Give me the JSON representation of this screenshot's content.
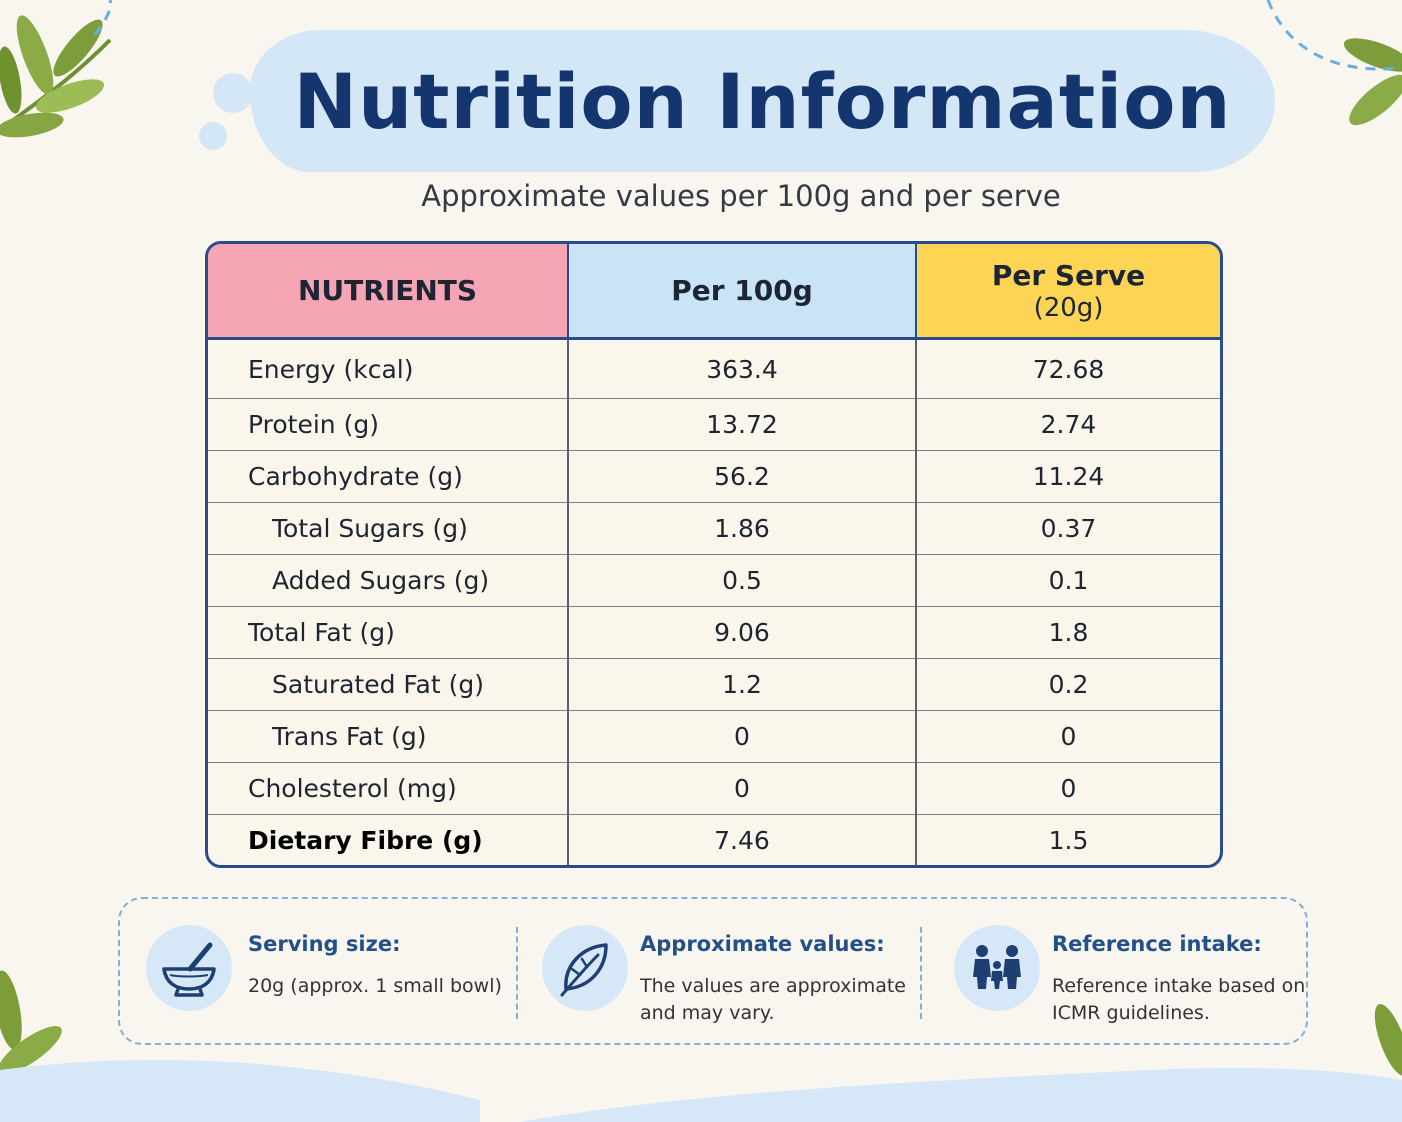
{
  "header": {
    "title": "Nutrition Information",
    "subtitle": "Approximate values per 100g and per serve"
  },
  "table": {
    "headers": {
      "nutrients": "NUTRIENTS",
      "per_100g": "Per 100g",
      "per_serve": "Per Serve",
      "per_serve_sub": "(20g)"
    },
    "header_colors": {
      "nutrients": "#f6a5b4",
      "per_100g": "#c9e3f7",
      "per_serve": "#fcd555"
    },
    "rows": [
      {
        "name": "Energy (kcal)",
        "per_100g": "363.4",
        "per_serve": "72.68"
      },
      {
        "name": "Protein (g)",
        "per_100g": "13.72",
        "per_serve": "2.74"
      },
      {
        "name": "Carbohydrate (g)",
        "per_100g": "56.2",
        "per_serve": "11.24"
      },
      {
        "name": "Total Sugars (g)",
        "per_100g": "1.86",
        "per_serve": "0.37"
      },
      {
        "name": "Added Sugars (g)",
        "per_100g": "0.5",
        "per_serve": "0.1"
      },
      {
        "name": "Total Fat (g)",
        "per_100g": "9.06",
        "per_serve": "1.8"
      },
      {
        "name": "Saturated Fat (g)",
        "per_100g": "1.2",
        "per_serve": "0.2"
      },
      {
        "name": "Trans Fat (g)",
        "per_100g": "0",
        "per_serve": "0"
      },
      {
        "name": "Cholesterol (mg)",
        "per_100g": "0",
        "per_serve": "0"
      },
      {
        "name": "Dietary Fibre (g)",
        "per_100g": "7.46",
        "per_serve": "1.5"
      }
    ]
  },
  "info": {
    "serving": {
      "icon": "mortar-pestle-icon",
      "heading": "Serving size:",
      "text": "20g (approx. 1 small bowl)"
    },
    "approximate": {
      "icon": "leaf-icon",
      "heading": "Approximate values:",
      "text_line1": "The values are approximate",
      "text_line2": "and may vary."
    },
    "reference": {
      "icon": "family-icon",
      "heading": "Reference intake:",
      "text_line1": "Reference intake based on",
      "text_line2": "ICMR guidelines."
    }
  },
  "colors": {
    "title": "#14356e",
    "table_border": "#2a4c8c",
    "info_heading": "#245089",
    "background": "#f8f6ef",
    "leaf": "#7a9a3c"
  }
}
